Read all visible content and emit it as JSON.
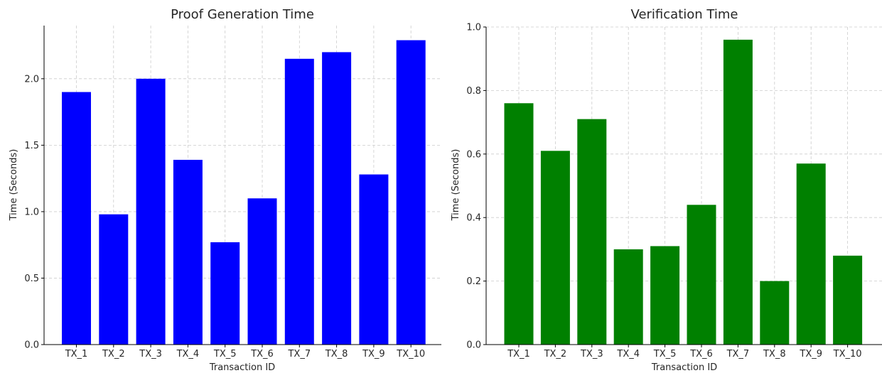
{
  "chart_data": [
    {
      "type": "bar",
      "title": "Proof Generation Time",
      "xlabel": "Transaction ID",
      "ylabel": "Time (Seconds)",
      "categories": [
        "TX_1",
        "TX_2",
        "TX_3",
        "TX_4",
        "TX_5",
        "TX_6",
        "TX_7",
        "TX_8",
        "TX_9",
        "TX_10"
      ],
      "values": [
        1.9,
        0.98,
        2.0,
        1.39,
        0.77,
        1.1,
        2.15,
        2.2,
        1.28,
        2.29
      ],
      "ylim": [
        0,
        2.4
      ],
      "yticks": [
        0.0,
        0.5,
        1.0,
        1.5,
        2.0
      ],
      "ytick_labels": [
        "0.0",
        "0.5",
        "1.0",
        "1.5",
        "2.0"
      ],
      "color": "#0000ff",
      "grid": true
    },
    {
      "type": "bar",
      "title": "Verification Time",
      "xlabel": "Transaction ID",
      "ylabel": "Time (Seconds)",
      "categories": [
        "TX_1",
        "TX_2",
        "TX_3",
        "TX_4",
        "TX_5",
        "TX_6",
        "TX_7",
        "TX_8",
        "TX_9",
        "TX_10"
      ],
      "values": [
        0.76,
        0.61,
        0.71,
        0.3,
        0.31,
        0.44,
        0.96,
        0.2,
        0.57,
        0.28
      ],
      "ylim": [
        0,
        1.0
      ],
      "yticks": [
        0.0,
        0.2,
        0.4,
        0.6,
        0.8,
        1.0
      ],
      "ytick_labels": [
        "0.0",
        "0.2",
        "0.4",
        "0.6",
        "0.8",
        "1.0"
      ],
      "color": "#008000",
      "grid": true
    }
  ]
}
